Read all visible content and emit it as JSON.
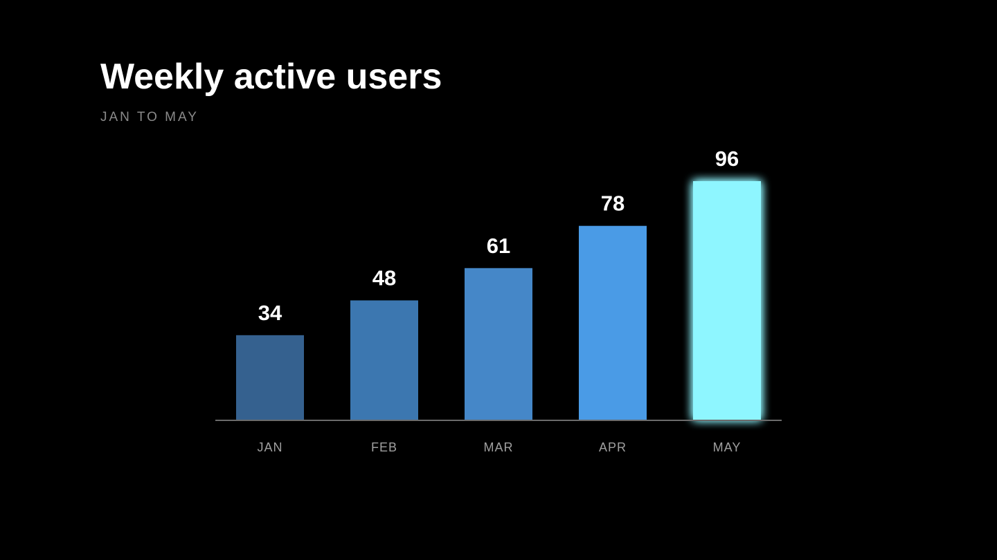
{
  "chart_data": {
    "type": "bar",
    "title": "Weekly active users",
    "subtitle": "JAN TO MAY",
    "categories": [
      "JAN",
      "FEB",
      "MAR",
      "APR",
      "MAY"
    ],
    "values": [
      34,
      48,
      61,
      78,
      96
    ],
    "ylim": [
      0,
      96
    ],
    "grid": false,
    "legend": "none",
    "bar_colors": [
      "#35618f",
      "#3c77b0",
      "#4587c8",
      "#4a9be6",
      "#8ef6ff"
    ],
    "highlight_index": 4,
    "axis_color": "#6b6b6b",
    "label_color": "#ffffff",
    "tick_color": "#a0a0a0"
  }
}
